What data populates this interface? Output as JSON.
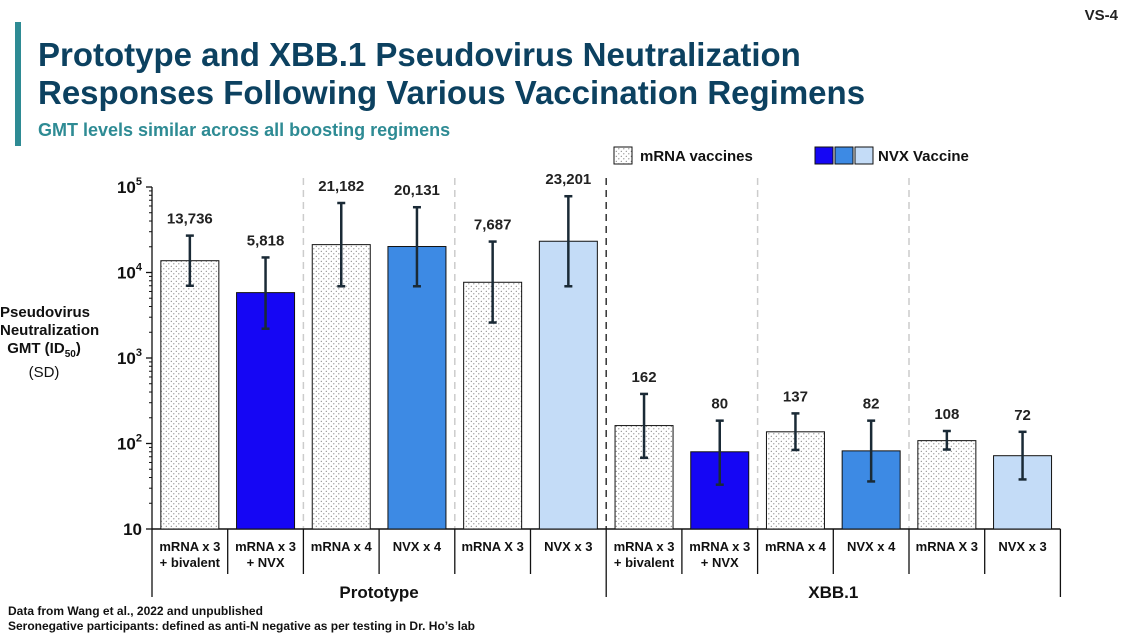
{
  "slide_id": "VS-4",
  "title_line1": "Prototype and XBB.1 Pseudovirus Neutralization",
  "title_line2": "Responses Following Various Vaccination Regimens",
  "subtitle": "GMT levels similar across all boosting regimens",
  "footnote1": "Data from Wang et al., 2022 and unpublished",
  "footnote2": "Seronegative participants: defined as anti-N negative as per testing in Dr. Ho’s lab",
  "colors": {
    "title": "#0c4160",
    "accent": "#2e8b94",
    "nvx_dark": "#1506f4",
    "nvx_mid": "#3d8ae4",
    "nvx_light": "#c4dcf7",
    "mrna_fill": "#ffffff"
  },
  "chart_data": {
    "type": "bar",
    "yscale": "log",
    "ylim": [
      10,
      100000
    ],
    "ylabel": {
      "line1": "Pseudovirus",
      "line2": "Neutralization",
      "line3_pre": "GMT (ID",
      "line3_sub": "50",
      "line3_post": ")",
      "line4": "(SD)"
    },
    "yticks": [
      {
        "value": 100000,
        "base": "10",
        "exp": "5"
      },
      {
        "value": 10000,
        "base": "10",
        "exp": "4"
      },
      {
        "value": 1000,
        "base": "10",
        "exp": "3"
      },
      {
        "value": 100,
        "base": "10",
        "exp": "2"
      },
      {
        "value": 10,
        "base": "10",
        "exp": ""
      }
    ],
    "legend": {
      "position": "top-right",
      "mrna_label": "mRNA vaccines",
      "nvx_label": "NVX Vaccine"
    },
    "groups": [
      "Prototype",
      "XBB.1"
    ],
    "bars": [
      {
        "group": "Prototype",
        "label1": "mRNA x 3",
        "label2": "+ bivalent",
        "value": 13736,
        "value_label": "13,736",
        "err_low": 7000,
        "err_high": 27000,
        "fill": "dotted"
      },
      {
        "group": "Prototype",
        "label1": "mRNA x 3",
        "label2": "+ NVX",
        "value": 5818,
        "value_label": "5,818",
        "err_low": 2200,
        "err_high": 15000,
        "fill": "#1506f4"
      },
      {
        "group": "Prototype",
        "label1": "mRNA x 4",
        "label2": "",
        "value": 21182,
        "value_label": "21,182",
        "err_low": 6900,
        "err_high": 65000,
        "fill": "dotted"
      },
      {
        "group": "Prototype",
        "label1": "NVX x 4",
        "label2": "",
        "value": 20131,
        "value_label": "20,131",
        "err_low": 6900,
        "err_high": 58000,
        "fill": "#3d8ae4"
      },
      {
        "group": "Prototype",
        "label1": "mRNA X 3",
        "label2": "",
        "value": 7687,
        "value_label": "7,687",
        "err_low": 2600,
        "err_high": 23000,
        "fill": "dotted"
      },
      {
        "group": "Prototype",
        "label1": "NVX x 3",
        "label2": "",
        "value": 23201,
        "value_label": "23,201",
        "err_low": 6900,
        "err_high": 78000,
        "fill": "#c4dcf7"
      },
      {
        "group": "XBB.1",
        "label1": "mRNA x 3",
        "label2": "+ bivalent",
        "value": 162,
        "value_label": "162",
        "err_low": 68,
        "err_high": 380,
        "fill": "dotted"
      },
      {
        "group": "XBB.1",
        "label1": "mRNA x 3",
        "label2": "+ NVX",
        "value": 80,
        "value_label": "80",
        "err_low": 33,
        "err_high": 185,
        "fill": "#1506f4"
      },
      {
        "group": "XBB.1",
        "label1": "mRNA x 4",
        "label2": "",
        "value": 137,
        "value_label": "137",
        "err_low": 84,
        "err_high": 225,
        "fill": "dotted"
      },
      {
        "group": "XBB.1",
        "label1": "NVX x 4",
        "label2": "",
        "value": 82,
        "value_label": "82",
        "err_low": 36,
        "err_high": 185,
        "fill": "#3d8ae4"
      },
      {
        "group": "XBB.1",
        "label1": "mRNA X 3",
        "label2": "",
        "value": 108,
        "value_label": "108",
        "err_low": 85,
        "err_high": 140,
        "fill": "dotted"
      },
      {
        "group": "XBB.1",
        "label1": "NVX x 3",
        "label2": "",
        "value": 72,
        "value_label": "72",
        "err_low": 38,
        "err_high": 137,
        "fill": "#c4dcf7"
      }
    ]
  }
}
